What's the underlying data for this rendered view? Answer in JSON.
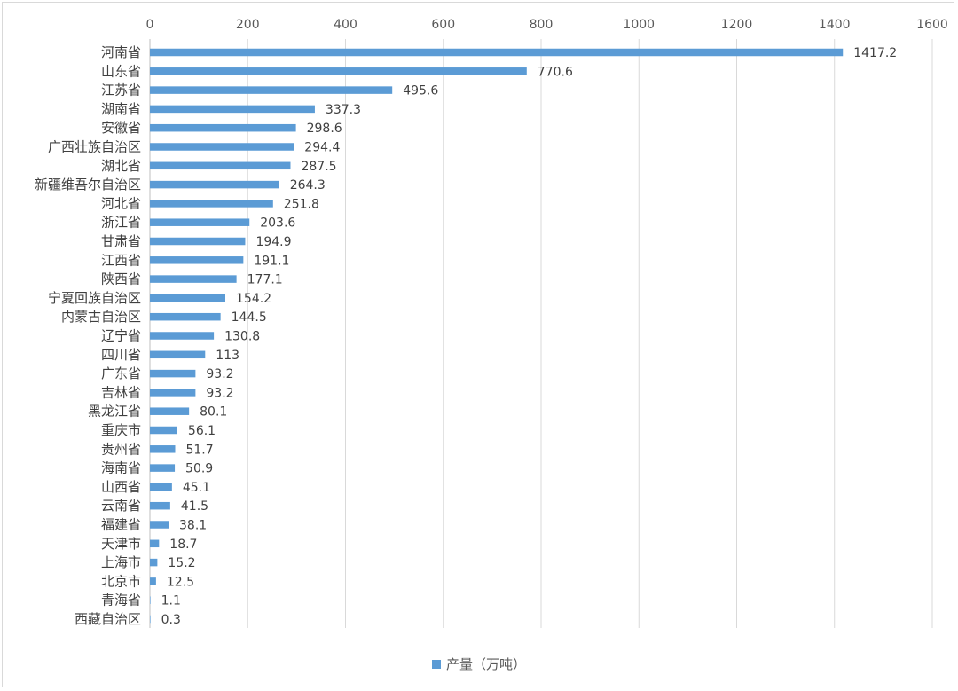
{
  "chart_data": {
    "type": "bar",
    "orientation": "horizontal",
    "categories": [
      "河南省",
      "山东省",
      "江苏省",
      "湖南省",
      "安徽省",
      "广西壮族自治区",
      "湖北省",
      "新疆维吾尔自治区",
      "河北省",
      "浙江省",
      "甘肃省",
      "江西省",
      "陕西省",
      "宁夏回族自治区",
      "内蒙古自治区",
      "辽宁省",
      "四川省",
      "广东省",
      "吉林省",
      "黑龙江省",
      "重庆市",
      "贵州省",
      "海南省",
      "山西省",
      "云南省",
      "福建省",
      "天津市",
      "上海市",
      "北京市",
      "青海省",
      "西藏自治区"
    ],
    "values": [
      1417.2,
      770.6,
      495.6,
      337.3,
      298.6,
      294.4,
      287.5,
      264.3,
      251.8,
      203.6,
      194.9,
      191.1,
      177.1,
      154.2,
      144.5,
      130.8,
      113,
      93.2,
      93.2,
      80.1,
      56.1,
      51.7,
      50.9,
      45.1,
      41.5,
      38.1,
      18.7,
      15.2,
      12.5,
      1.1,
      0.3
    ],
    "value_labels": [
      "1417.2",
      "770.6",
      "495.6",
      "337.3",
      "298.6",
      "294.4",
      "287.5",
      "264.3",
      "251.8",
      "203.6",
      "194.9",
      "191.1",
      "177.1",
      "154.2",
      "144.5",
      "130.8",
      "113",
      "93.2",
      "93.2",
      "80.1",
      "56.1",
      "51.7",
      "50.9",
      "45.1",
      "41.5",
      "38.1",
      "18.7",
      "15.2",
      "12.5",
      "1.1",
      "0.3"
    ],
    "series_name": "产量（万吨）",
    "xlim": [
      0,
      1600
    ],
    "xticks": [
      0,
      200,
      400,
      600,
      800,
      1000,
      1200,
      1400,
      1600
    ],
    "xtick_labels": [
      "0",
      "200",
      "400",
      "600",
      "800",
      "1000",
      "1200",
      "1400",
      "1600"
    ],
    "axis_position": "top",
    "grid": true,
    "legend_position": "bottom",
    "title": "",
    "xlabel": "",
    "ylabel": ""
  },
  "colors": {
    "bar": "#5b9bd5",
    "grid": "#d9d9d9",
    "axis": "#bfbfbf"
  }
}
